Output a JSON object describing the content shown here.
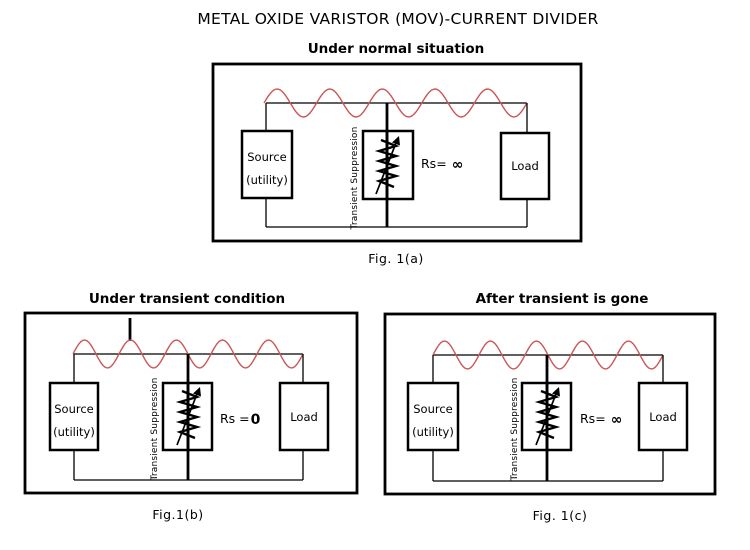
{
  "title": "METAL OXIDE VARISTOR (MOV)-CURRENT DIVIDER",
  "colors": {
    "title": "#4b4fd2",
    "wave": "#cc5555",
    "line": "#000000"
  },
  "figures": [
    {
      "subtitle": "Under normal situation",
      "source_line1": "Source",
      "source_line2": "(utility)",
      "suppression": "Transient Suppression",
      "rs_prefix": "Rs=",
      "rs_value": "∞",
      "load": "Load",
      "caption": "Fig. 1(a)"
    },
    {
      "subtitle": "Under transient condition",
      "source_line1": "Source",
      "source_line2": "(utility)",
      "suppression": "Transient Suppression",
      "rs_prefix": "Rs =",
      "rs_value": "0",
      "load": "Load",
      "caption": "Fig.1(b)"
    },
    {
      "subtitle": "After transient is gone",
      "source_line1": "Source",
      "source_line2": "(utility)",
      "suppression": "Transient Suppression",
      "rs_prefix": "Rs=",
      "rs_value": "∞",
      "load": "Load",
      "caption": "Fig. 1(c)"
    }
  ]
}
